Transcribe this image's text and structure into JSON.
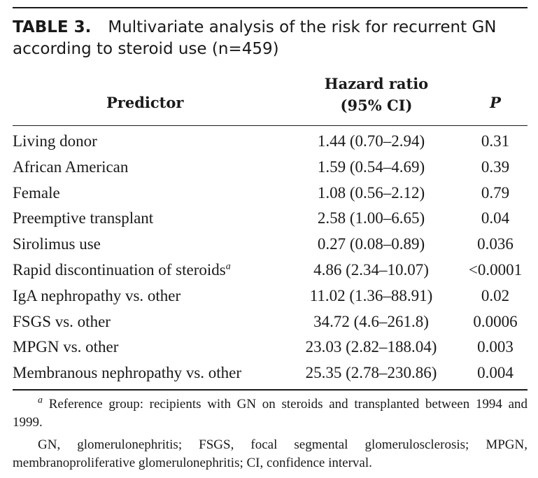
{
  "title": {
    "label": "TABLE 3.",
    "text": "Multivariate analysis of the risk for recurrent GN according to steroid use (n=459)"
  },
  "columns": {
    "predictor": "Predictor",
    "hazard_line1": "Hazard ratio",
    "hazard_line2": "(95% CI)",
    "p": "P"
  },
  "rows": [
    {
      "predictor": "Living donor",
      "hr": "1.44 (0.70–2.94)",
      "p": "0.31"
    },
    {
      "predictor": "African American",
      "hr": "1.59 (0.54–4.69)",
      "p": "0.39"
    },
    {
      "predictor": "Female",
      "hr": "1.08 (0.56–2.12)",
      "p": "0.79"
    },
    {
      "predictor": "Preemptive transplant",
      "hr": "2.58 (1.00–6.65)",
      "p": "0.04"
    },
    {
      "predictor": "Sirolimus use",
      "hr": "0.27 (0.08–0.89)",
      "p": "0.036"
    },
    {
      "predictor": "Rapid discontinuation of steroids",
      "marker": "a",
      "hr": "4.86 (2.34–10.07)",
      "p": "<0.0001"
    },
    {
      "predictor": "IgA nephropathy vs. other",
      "hr": "11.02 (1.36–88.91)",
      "p": "0.02"
    },
    {
      "predictor": "FSGS vs. other",
      "hr": "34.72 (4.6–261.8)",
      "p": "0.0006"
    },
    {
      "predictor": "MPGN vs. other",
      "hr": "23.03 (2.82–188.04)",
      "p": "0.003"
    },
    {
      "predictor": "Membranous nephropathy vs. other",
      "hr": "25.35 (2.78–230.86)",
      "p": "0.004"
    }
  ],
  "footnotes": {
    "marker": "a",
    "note_a": "Reference group: recipients with GN on steroids and transplanted between 1994 and 1999.",
    "abbreviations": "GN, glomerulonephritis; FSGS, focal segmental glomerulosclerosis; MPGN, membranoproliferative glomerulonephritis; CI, confidence interval."
  }
}
